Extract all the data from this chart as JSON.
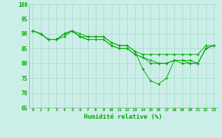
{
  "title": "",
  "xlabel": "Humidité relative (%)",
  "ylabel": "",
  "background_color": "#cceee8",
  "grid_color": "#aaddcc",
  "line_color": "#00aa00",
  "xlim": [
    -0.5,
    23.5
  ],
  "ylim": [
    65,
    100
  ],
  "yticks": [
    65,
    70,
    75,
    80,
    85,
    90,
    95,
    100
  ],
  "xticks": [
    0,
    1,
    2,
    3,
    4,
    5,
    6,
    7,
    8,
    9,
    10,
    11,
    12,
    13,
    14,
    15,
    16,
    17,
    18,
    19,
    20,
    21,
    22,
    23
  ],
  "series1": {
    "x": [
      0,
      1,
      2,
      3,
      4,
      5,
      6,
      7,
      8,
      9,
      10,
      11,
      12,
      13,
      14,
      15,
      16,
      17,
      18,
      19,
      20,
      21,
      22,
      23
    ],
    "y": [
      91,
      90,
      88,
      88,
      90,
      91,
      90,
      89,
      89,
      89,
      87,
      86,
      86,
      84,
      78,
      74,
      73,
      75,
      81,
      81,
      81,
      80,
      85,
      86
    ]
  },
  "series2": {
    "x": [
      0,
      1,
      2,
      3,
      4,
      5,
      6,
      7,
      8,
      9,
      10,
      11,
      12,
      13,
      14,
      15,
      16,
      17,
      18,
      19,
      20,
      21,
      22,
      23
    ],
    "y": [
      91,
      90,
      88,
      88,
      90,
      91,
      89,
      89,
      89,
      89,
      87,
      86,
      86,
      84,
      83,
      83,
      83,
      83,
      83,
      83,
      83,
      83,
      86,
      86
    ]
  },
  "series3": {
    "x": [
      0,
      1,
      2,
      3,
      4,
      5,
      6,
      7,
      8,
      9,
      10,
      11,
      12,
      13,
      14,
      15,
      16,
      17,
      18,
      19,
      20,
      21,
      22,
      23
    ],
    "y": [
      91,
      90,
      88,
      88,
      90,
      91,
      89,
      88,
      88,
      88,
      86,
      85,
      85,
      83,
      82,
      81,
      80,
      80,
      81,
      81,
      80,
      80,
      85,
      86
    ]
  },
  "series4": {
    "x": [
      0,
      1,
      2,
      3,
      4,
      5,
      6,
      7,
      8,
      9,
      10,
      11,
      12,
      13,
      14,
      15,
      16,
      17,
      18,
      19,
      20,
      21,
      22,
      23
    ],
    "y": [
      91,
      90,
      88,
      88,
      89,
      91,
      89,
      88,
      88,
      88,
      86,
      85,
      85,
      83,
      82,
      80,
      80,
      80,
      81,
      80,
      80,
      80,
      85,
      86
    ]
  }
}
